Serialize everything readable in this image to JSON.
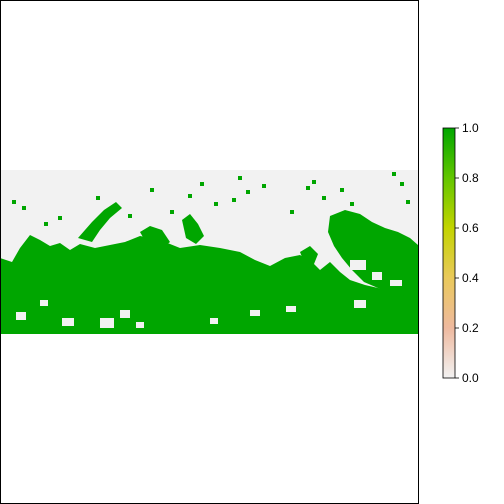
{
  "chart_data": {
    "type": "heatmap",
    "title": "",
    "xlabel": "",
    "ylabel": "",
    "legend": {
      "position": "right",
      "ticks": [
        {
          "value": 0.0,
          "label": "0.0"
        },
        {
          "value": 0.2,
          "label": "0.2"
        },
        {
          "value": 0.4,
          "label": "0.4"
        },
        {
          "value": 0.6,
          "label": "0.6"
        },
        {
          "value": 0.8,
          "label": "0.8"
        },
        {
          "value": 1.0,
          "label": "1.0"
        }
      ],
      "range": [
        0.0,
        1.0
      ],
      "colors": [
        "#f2f2f2",
        "#eeb99f",
        "#eac95b",
        "#c3d400",
        "#63c600",
        "#00a600"
      ]
    },
    "raster": {
      "value_present": 1.0,
      "present_color": "#00a600",
      "absent_color": "#f2f2f2",
      "background_color": "#ffffff"
    }
  }
}
